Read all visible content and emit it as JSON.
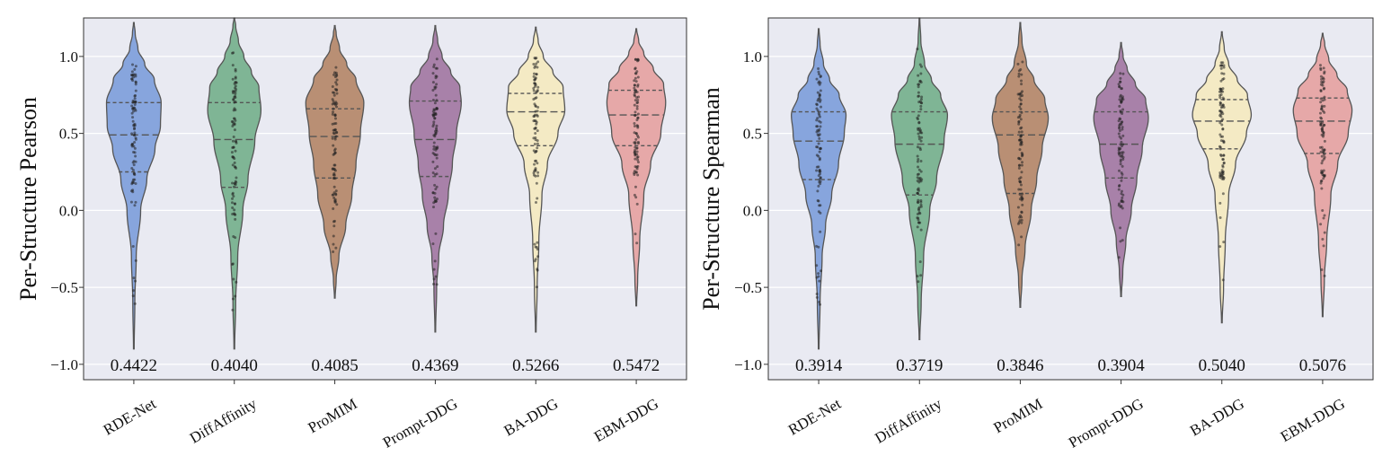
{
  "chart_data": [
    {
      "type": "violin",
      "ylabel": "Per-Structure Pearson",
      "xlabel": "",
      "ylim": [
        -1.1,
        1.25
      ],
      "yticks": [
        -1.0,
        -0.5,
        0.0,
        0.5,
        1.0
      ],
      "ytick_labels": [
        "−1.0",
        "−0.5",
        "0.0",
        "0.5",
        "1.0"
      ],
      "grid": true,
      "categories": [
        "RDE-Net",
        "DiffAffinity",
        "ProMIM",
        "Prompt-DDG",
        "BA-DDG",
        "EBM-DDG"
      ],
      "mean_labels": [
        "0.4422",
        "0.4040",
        "0.4085",
        "0.4369",
        "0.5266",
        "0.5472"
      ],
      "series": [
        {
          "name": "RDE-Net",
          "color": "#87a5dd",
          "min": -0.9,
          "max": 1.22,
          "q1": 0.25,
          "median": 0.49,
          "q3": 0.7,
          "profile": [
            [
              -0.9,
              0.01
            ],
            [
              -0.6,
              0.03
            ],
            [
              -0.3,
              0.07
            ],
            [
              0.0,
              0.2
            ],
            [
              0.2,
              0.38
            ],
            [
              0.4,
              0.62
            ],
            [
              0.55,
              0.78
            ],
            [
              0.7,
              0.8
            ],
            [
              0.85,
              0.6
            ],
            [
              0.95,
              0.32
            ],
            [
              1.05,
              0.12
            ],
            [
              1.15,
              0.04
            ],
            [
              1.22,
              0.01
            ]
          ]
        },
        {
          "name": "DiffAffinity",
          "color": "#7fb595",
          "min": -0.9,
          "max": 1.25,
          "q1": 0.15,
          "median": 0.46,
          "q3": 0.7,
          "profile": [
            [
              -0.9,
              0.01
            ],
            [
              -0.6,
              0.04
            ],
            [
              -0.3,
              0.1
            ],
            [
              0.0,
              0.25
            ],
            [
              0.2,
              0.4
            ],
            [
              0.45,
              0.6
            ],
            [
              0.65,
              0.78
            ],
            [
              0.8,
              0.72
            ],
            [
              0.9,
              0.5
            ],
            [
              1.0,
              0.28
            ],
            [
              1.1,
              0.12
            ],
            [
              1.2,
              0.04
            ],
            [
              1.25,
              0.01
            ]
          ]
        },
        {
          "name": "ProMIM",
          "color": "#b98f74",
          "min": -0.57,
          "max": 1.2,
          "q1": 0.21,
          "median": 0.48,
          "q3": 0.66,
          "profile": [
            [
              -0.57,
              0.01
            ],
            [
              -0.45,
              0.04
            ],
            [
              -0.3,
              0.12
            ],
            [
              -0.1,
              0.32
            ],
            [
              0.1,
              0.5
            ],
            [
              0.3,
              0.62
            ],
            [
              0.5,
              0.75
            ],
            [
              0.7,
              0.85
            ],
            [
              0.85,
              0.62
            ],
            [
              0.95,
              0.35
            ],
            [
              1.05,
              0.14
            ],
            [
              1.15,
              0.04
            ],
            [
              1.2,
              0.01
            ]
          ]
        },
        {
          "name": "Prompt-DDG",
          "color": "#a881a9",
          "min": -0.79,
          "max": 1.2,
          "q1": 0.22,
          "median": 0.46,
          "q3": 0.71,
          "profile": [
            [
              -0.79,
              0.01
            ],
            [
              -0.5,
              0.04
            ],
            [
              -0.3,
              0.1
            ],
            [
              -0.1,
              0.24
            ],
            [
              0.1,
              0.38
            ],
            [
              0.3,
              0.5
            ],
            [
              0.5,
              0.62
            ],
            [
              0.7,
              0.76
            ],
            [
              0.8,
              0.72
            ],
            [
              0.9,
              0.45
            ],
            [
              1.0,
              0.2
            ],
            [
              1.1,
              0.07
            ],
            [
              1.2,
              0.01
            ]
          ]
        },
        {
          "name": "BA-DDG",
          "color": "#f4eac4",
          "min": -0.79,
          "max": 1.19,
          "q1": 0.42,
          "median": 0.64,
          "q3": 0.76,
          "profile": [
            [
              -0.79,
              0.01
            ],
            [
              -0.5,
              0.04
            ],
            [
              -0.2,
              0.09
            ],
            [
              0.1,
              0.18
            ],
            [
              0.3,
              0.34
            ],
            [
              0.5,
              0.65
            ],
            [
              0.65,
              0.85
            ],
            [
              0.8,
              0.8
            ],
            [
              0.9,
              0.5
            ],
            [
              1.0,
              0.22
            ],
            [
              1.1,
              0.07
            ],
            [
              1.19,
              0.01
            ]
          ]
        },
        {
          "name": "EBM-DDG",
          "color": "#e6a8a8",
          "min": -0.62,
          "max": 1.18,
          "q1": 0.42,
          "median": 0.62,
          "q3": 0.78,
          "profile": [
            [
              -0.62,
              0.01
            ],
            [
              -0.45,
              0.04
            ],
            [
              -0.2,
              0.1
            ],
            [
              0.1,
              0.22
            ],
            [
              0.3,
              0.42
            ],
            [
              0.5,
              0.72
            ],
            [
              0.7,
              0.86
            ],
            [
              0.82,
              0.8
            ],
            [
              0.92,
              0.5
            ],
            [
              1.02,
              0.22
            ],
            [
              1.1,
              0.07
            ],
            [
              1.18,
              0.01
            ]
          ]
        }
      ]
    },
    {
      "type": "violin",
      "ylabel": "Per-Structure Spearman",
      "xlabel": "",
      "ylim": [
        -1.1,
        1.25
      ],
      "yticks": [
        -1.0,
        -0.5,
        0.0,
        0.5,
        1.0
      ],
      "ytick_labels": [
        "−1.0",
        "−0.5",
        "0.0",
        "0.5",
        "1.0"
      ],
      "grid": true,
      "categories": [
        "RDE-Net",
        "DiffAffinity",
        "ProMIM",
        "Prompt-DDG",
        "BA-DDG",
        "EBM-DDG"
      ],
      "mean_labels": [
        "0.3914",
        "0.3719",
        "0.3846",
        "0.3904",
        "0.5040",
        "0.5076"
      ],
      "series": [
        {
          "name": "RDE-Net",
          "color": "#87a5dd",
          "min": -0.9,
          "max": 1.18,
          "q1": 0.2,
          "median": 0.45,
          "q3": 0.64,
          "profile": [
            [
              -0.9,
              0.01
            ],
            [
              -0.6,
              0.04
            ],
            [
              -0.3,
              0.1
            ],
            [
              -0.1,
              0.2
            ],
            [
              0.1,
              0.38
            ],
            [
              0.3,
              0.58
            ],
            [
              0.5,
              0.75
            ],
            [
              0.62,
              0.8
            ],
            [
              0.75,
              0.6
            ],
            [
              0.85,
              0.32
            ],
            [
              0.95,
              0.14
            ],
            [
              1.08,
              0.04
            ],
            [
              1.18,
              0.01
            ]
          ]
        },
        {
          "name": "DiffAffinity",
          "color": "#7fb595",
          "min": -0.84,
          "max": 1.25,
          "q1": 0.1,
          "median": 0.43,
          "q3": 0.64,
          "profile": [
            [
              -0.84,
              0.01
            ],
            [
              -0.6,
              0.05
            ],
            [
              -0.3,
              0.12
            ],
            [
              0.0,
              0.3
            ],
            [
              0.2,
              0.5
            ],
            [
              0.45,
              0.72
            ],
            [
              0.62,
              0.82
            ],
            [
              0.75,
              0.62
            ],
            [
              0.85,
              0.35
            ],
            [
              0.95,
              0.15
            ],
            [
              1.1,
              0.04
            ],
            [
              1.25,
              0.01
            ]
          ]
        },
        {
          "name": "ProMIM",
          "color": "#b98f74",
          "min": -0.63,
          "max": 1.22,
          "q1": 0.11,
          "median": 0.49,
          "q3": 0.64,
          "profile": [
            [
              -0.63,
              0.01
            ],
            [
              -0.45,
              0.05
            ],
            [
              -0.25,
              0.14
            ],
            [
              0.0,
              0.32
            ],
            [
              0.2,
              0.48
            ],
            [
              0.4,
              0.64
            ],
            [
              0.6,
              0.82
            ],
            [
              0.72,
              0.72
            ],
            [
              0.85,
              0.4
            ],
            [
              0.95,
              0.18
            ],
            [
              1.1,
              0.05
            ],
            [
              1.22,
              0.01
            ]
          ]
        },
        {
          "name": "Prompt-DDG",
          "color": "#a881a9",
          "min": -0.56,
          "max": 1.09,
          "q1": 0.21,
          "median": 0.43,
          "q3": 0.64,
          "profile": [
            [
              -0.56,
              0.01
            ],
            [
              -0.4,
              0.05
            ],
            [
              -0.2,
              0.14
            ],
            [
              0.0,
              0.3
            ],
            [
              0.2,
              0.46
            ],
            [
              0.4,
              0.62
            ],
            [
              0.6,
              0.8
            ],
            [
              0.72,
              0.72
            ],
            [
              0.82,
              0.42
            ],
            [
              0.92,
              0.18
            ],
            [
              1.0,
              0.06
            ],
            [
              1.09,
              0.01
            ]
          ]
        },
        {
          "name": "BA-DDG",
          "color": "#f4eac4",
          "min": -0.73,
          "max": 1.16,
          "q1": 0.4,
          "median": 0.58,
          "q3": 0.72,
          "profile": [
            [
              -0.73,
              0.01
            ],
            [
              -0.5,
              0.05
            ],
            [
              -0.2,
              0.1
            ],
            [
              0.1,
              0.2
            ],
            [
              0.3,
              0.4
            ],
            [
              0.5,
              0.72
            ],
            [
              0.62,
              0.86
            ],
            [
              0.75,
              0.75
            ],
            [
              0.85,
              0.45
            ],
            [
              0.95,
              0.2
            ],
            [
              1.05,
              0.07
            ],
            [
              1.16,
              0.01
            ]
          ]
        },
        {
          "name": "EBM-DDG",
          "color": "#e6a8a8",
          "min": -0.69,
          "max": 1.15,
          "q1": 0.37,
          "median": 0.58,
          "q3": 0.73,
          "profile": [
            [
              -0.69,
              0.01
            ],
            [
              -0.45,
              0.05
            ],
            [
              -0.2,
              0.12
            ],
            [
              0.1,
              0.24
            ],
            [
              0.3,
              0.44
            ],
            [
              0.5,
              0.75
            ],
            [
              0.65,
              0.86
            ],
            [
              0.78,
              0.72
            ],
            [
              0.88,
              0.42
            ],
            [
              0.98,
              0.18
            ],
            [
              1.08,
              0.06
            ],
            [
              1.15,
              0.01
            ]
          ]
        }
      ]
    }
  ]
}
